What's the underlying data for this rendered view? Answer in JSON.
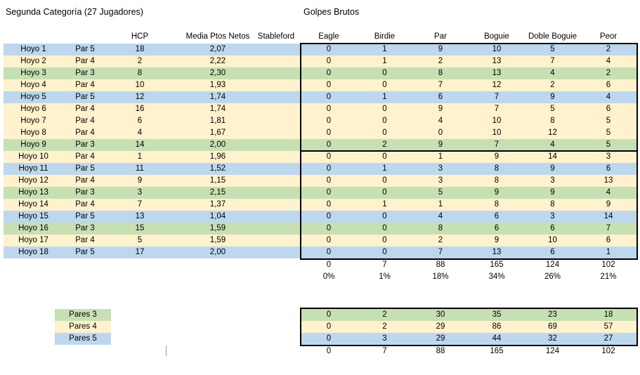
{
  "titles": {
    "left": "Segunda Categoría (27 Jugadores)",
    "right": "Golpes Brutos"
  },
  "left_headers": {
    "hcp": "HCP",
    "media": "Media Ptos Netos",
    "stableford": "Stableford"
  },
  "right_headers": [
    "Eagle",
    "Birdie",
    "Par",
    "Boguie",
    "Doble Boguie",
    "Peor"
  ],
  "colors": {
    "par3_green": "#C6E0B4",
    "par4_cream": "#FFF2CC",
    "par5_blue": "#BDD7EE",
    "border": "#000000"
  },
  "holes": [
    {
      "hole": "Hoyo 1",
      "par": "Par 5",
      "type": "par5",
      "hcp": 18,
      "media": "2,07",
      "counts": [
        0,
        1,
        9,
        10,
        5,
        2
      ]
    },
    {
      "hole": "Hoyo 2",
      "par": "Par 4",
      "type": "par4",
      "hcp": 2,
      "media": "2,22",
      "counts": [
        0,
        1,
        2,
        13,
        7,
        4
      ]
    },
    {
      "hole": "Hoyo 3",
      "par": "Par 3",
      "type": "par3",
      "hcp": 8,
      "media": "2,30",
      "counts": [
        0,
        0,
        8,
        13,
        4,
        2
      ]
    },
    {
      "hole": "Hoyo 4",
      "par": "Par 4",
      "type": "par4",
      "hcp": 10,
      "media": "1,93",
      "counts": [
        0,
        0,
        7,
        12,
        2,
        6
      ]
    },
    {
      "hole": "Hoyo 5",
      "par": "Par 5",
      "type": "par5",
      "hcp": 12,
      "media": "1,74",
      "counts": [
        0,
        1,
        6,
        7,
        9,
        4
      ]
    },
    {
      "hole": "Hoyo 6",
      "par": "Par 4",
      "type": "par4",
      "hcp": 16,
      "media": "1,74",
      "counts": [
        0,
        0,
        9,
        7,
        5,
        6
      ]
    },
    {
      "hole": "Hoyo 7",
      "par": "Par 4",
      "type": "par4",
      "hcp": 6,
      "media": "1,81",
      "counts": [
        0,
        0,
        4,
        10,
        8,
        5
      ]
    },
    {
      "hole": "Hoyo 8",
      "par": "Par 4",
      "type": "par4",
      "hcp": 4,
      "media": "1,67",
      "counts": [
        0,
        0,
        0,
        10,
        12,
        5
      ]
    },
    {
      "hole": "Hoyo 9",
      "par": "Par 3",
      "type": "par3",
      "hcp": 14,
      "media": "2,00",
      "counts": [
        0,
        2,
        9,
        7,
        4,
        5
      ]
    },
    {
      "hole": "Hoyo 10",
      "par": "Par 4",
      "type": "par4",
      "hcp": 1,
      "media": "1,96",
      "counts": [
        0,
        0,
        1,
        9,
        14,
        3
      ]
    },
    {
      "hole": "Hoyo 11",
      "par": "Par 5",
      "type": "par5",
      "hcp": 11,
      "media": "1,52",
      "counts": [
        0,
        1,
        3,
        8,
        9,
        6
      ]
    },
    {
      "hole": "Hoyo 12",
      "par": "Par 4",
      "type": "par4",
      "hcp": 9,
      "media": "1,15",
      "counts": [
        0,
        0,
        3,
        8,
        3,
        13
      ]
    },
    {
      "hole": "Hoyo 13",
      "par": "Par 3",
      "type": "par3",
      "hcp": 3,
      "media": "2,15",
      "counts": [
        0,
        0,
        5,
        9,
        9,
        4
      ]
    },
    {
      "hole": "Hoyo 14",
      "par": "Par 4",
      "type": "par4",
      "hcp": 7,
      "media": "1,37",
      "counts": [
        0,
        1,
        1,
        8,
        8,
        9
      ]
    },
    {
      "hole": "Hoyo 15",
      "par": "Par 5",
      "type": "par5",
      "hcp": 13,
      "media": "1,04",
      "counts": [
        0,
        0,
        4,
        6,
        3,
        14
      ]
    },
    {
      "hole": "Hoyo 16",
      "par": "Par 3",
      "type": "par3",
      "hcp": 15,
      "media": "1,59",
      "counts": [
        0,
        0,
        8,
        6,
        6,
        7
      ]
    },
    {
      "hole": "Hoyo 17",
      "par": "Par 4",
      "type": "par4",
      "hcp": 5,
      "media": "1,59",
      "counts": [
        0,
        0,
        2,
        9,
        10,
        6
      ]
    },
    {
      "hole": "Hoyo 18",
      "par": "Par 5",
      "type": "par5",
      "hcp": 17,
      "media": "2,00",
      "counts": [
        0,
        0,
        7,
        13,
        6,
        1
      ]
    }
  ],
  "totals": {
    "counts": [
      0,
      7,
      88,
      165,
      124,
      102
    ],
    "percents": [
      "0%",
      "1%",
      "18%",
      "34%",
      "26%",
      "21%"
    ]
  },
  "legend": [
    {
      "label": "Pares 3",
      "type": "par3"
    },
    {
      "label": "Pares 4",
      "type": "par4"
    },
    {
      "label": "Pares 5",
      "type": "par5"
    }
  ],
  "summary": {
    "rows": [
      {
        "type": "par3",
        "counts": [
          0,
          2,
          30,
          35,
          23,
          18
        ]
      },
      {
        "type": "par4",
        "counts": [
          0,
          2,
          29,
          86,
          69,
          57
        ]
      },
      {
        "type": "par5",
        "counts": [
          0,
          3,
          29,
          44,
          32,
          27
        ]
      }
    ],
    "total": [
      0,
      7,
      88,
      165,
      124,
      102
    ]
  }
}
